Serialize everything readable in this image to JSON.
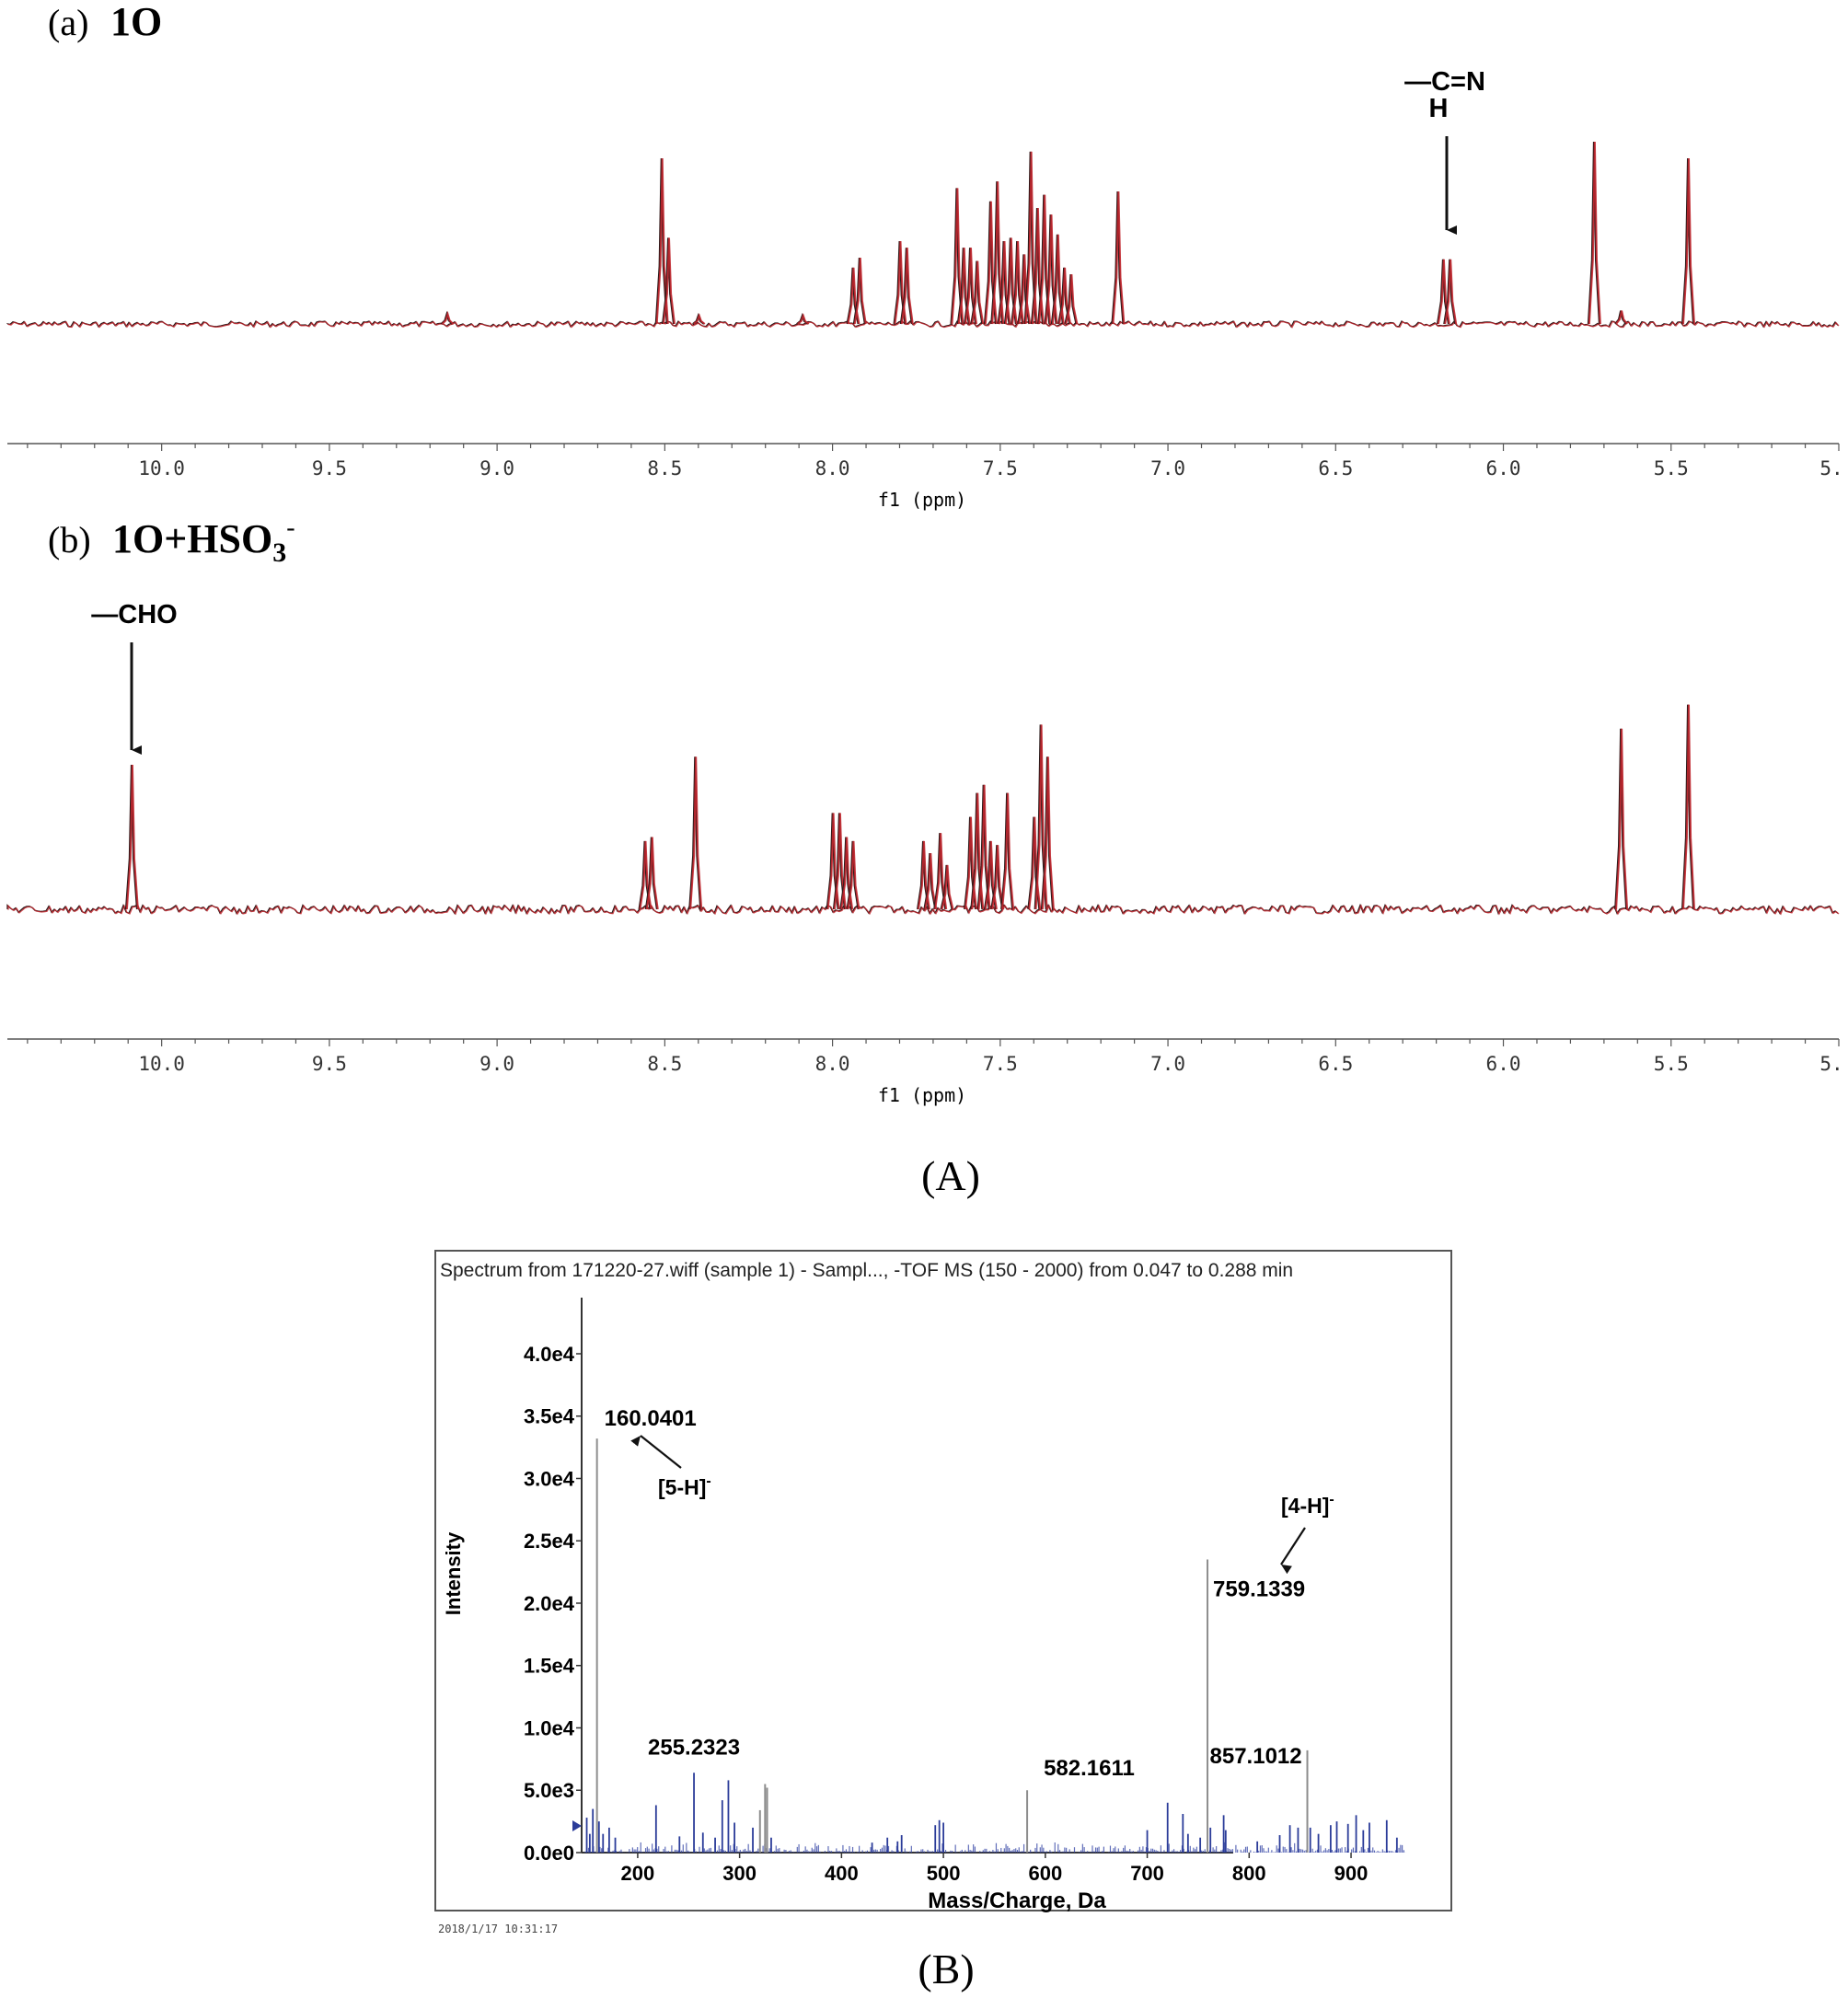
{
  "figure": {
    "panel_A_caption": "(A)",
    "panel_B_caption": "(B)"
  },
  "chart_data": [
    {
      "id": "nmr_a",
      "type": "line",
      "panel_label": "(a)",
      "panel_title": "1O",
      "xlabel": "f1 (ppm)",
      "xlim": [
        10.46,
        5.0
      ],
      "x_reversed": true,
      "x_ticks": [
        10.0,
        9.5,
        9.0,
        8.5,
        8.0,
        7.5,
        7.0,
        6.5,
        6.0,
        5.5,
        5.0
      ],
      "x_tick_labels": [
        "10.0",
        "9.5",
        "9.0",
        "8.5",
        "8.0",
        "7.5",
        "7.0",
        "6.5",
        "6.0",
        "5.5",
        "5."
      ],
      "series": [
        {
          "color": "#c0262d",
          "peaks": [
            {
              "x": 9.15,
              "y": 0.06
            },
            {
              "x": 8.51,
              "y": 1.0
            },
            {
              "x": 8.49,
              "y": 0.52
            },
            {
              "x": 8.4,
              "y": 0.05
            },
            {
              "x": 8.09,
              "y": 0.05
            },
            {
              "x": 7.94,
              "y": 0.34
            },
            {
              "x": 7.92,
              "y": 0.4
            },
            {
              "x": 7.8,
              "y": 0.5
            },
            {
              "x": 7.78,
              "y": 0.46
            },
            {
              "x": 7.63,
              "y": 0.82
            },
            {
              "x": 7.61,
              "y": 0.46
            },
            {
              "x": 7.59,
              "y": 0.46
            },
            {
              "x": 7.57,
              "y": 0.38
            },
            {
              "x": 7.53,
              "y": 0.74
            },
            {
              "x": 7.51,
              "y": 0.86
            },
            {
              "x": 7.49,
              "y": 0.5
            },
            {
              "x": 7.47,
              "y": 0.52
            },
            {
              "x": 7.45,
              "y": 0.5
            },
            {
              "x": 7.43,
              "y": 0.42
            },
            {
              "x": 7.41,
              "y": 1.04
            },
            {
              "x": 7.39,
              "y": 0.7
            },
            {
              "x": 7.37,
              "y": 0.78
            },
            {
              "x": 7.35,
              "y": 0.66
            },
            {
              "x": 7.33,
              "y": 0.54
            },
            {
              "x": 7.31,
              "y": 0.34
            },
            {
              "x": 7.29,
              "y": 0.3
            },
            {
              "x": 7.15,
              "y": 0.8
            },
            {
              "x": 6.18,
              "y": 0.39
            },
            {
              "x": 6.16,
              "y": 0.39
            },
            {
              "x": 5.73,
              "y": 1.1
            },
            {
              "x": 5.65,
              "y": 0.08
            },
            {
              "x": 5.45,
              "y": 1.0
            }
          ]
        }
      ],
      "annotation": {
        "text_top": "—C=N",
        "text_bottom": "H",
        "x": 6.17
      }
    },
    {
      "id": "nmr_b",
      "type": "line",
      "panel_label": "(b)",
      "panel_title": "1O+HSO",
      "panel_title_sub": "3",
      "panel_title_sup": "-",
      "xlabel": "f1 (ppm)",
      "xlim": [
        10.46,
        5.0
      ],
      "x_reversed": true,
      "x_ticks": [
        10.0,
        9.5,
        9.0,
        8.5,
        8.0,
        7.5,
        7.0,
        6.5,
        6.0,
        5.5,
        5.0
      ],
      "x_tick_labels": [
        "10.0",
        "9.5",
        "9.0",
        "8.5",
        "8.0",
        "7.5",
        "7.0",
        "6.5",
        "6.0",
        "5.5",
        "5."
      ],
      "series": [
        {
          "color": "#c0262d",
          "peaks": [
            {
              "x": 10.09,
              "y": 0.72
            },
            {
              "x": 8.56,
              "y": 0.34
            },
            {
              "x": 8.54,
              "y": 0.36
            },
            {
              "x": 8.41,
              "y": 0.76
            },
            {
              "x": 8.0,
              "y": 0.48
            },
            {
              "x": 7.98,
              "y": 0.48
            },
            {
              "x": 7.96,
              "y": 0.36
            },
            {
              "x": 7.94,
              "y": 0.34
            },
            {
              "x": 7.73,
              "y": 0.34
            },
            {
              "x": 7.71,
              "y": 0.28
            },
            {
              "x": 7.68,
              "y": 0.38
            },
            {
              "x": 7.66,
              "y": 0.22
            },
            {
              "x": 7.59,
              "y": 0.46
            },
            {
              "x": 7.57,
              "y": 0.58
            },
            {
              "x": 7.55,
              "y": 0.62
            },
            {
              "x": 7.53,
              "y": 0.34
            },
            {
              "x": 7.51,
              "y": 0.32
            },
            {
              "x": 7.48,
              "y": 0.58
            },
            {
              "x": 7.4,
              "y": 0.46
            },
            {
              "x": 7.38,
              "y": 0.92
            },
            {
              "x": 7.36,
              "y": 0.76
            },
            {
              "x": 5.65,
              "y": 0.9
            },
            {
              "x": 5.45,
              "y": 1.02
            }
          ]
        }
      ],
      "annotation": {
        "text": "—CHO",
        "x": 10.09
      }
    },
    {
      "id": "ms",
      "type": "bar",
      "title": "Spectrum from 171220-27.wiff (sample 1) - Sampl..., -TOF MS (150 - 2000) from 0.047 to 0.288 min",
      "xlabel": "Mass/Charge, Da",
      "ylabel": "Intensity",
      "xlim": [
        145,
        965
      ],
      "ylim": [
        0,
        44500
      ],
      "x_tick_labels": [
        "200",
        "300",
        "400",
        "500",
        "600",
        "700",
        "800",
        "900"
      ],
      "x_ticks": [
        200,
        300,
        400,
        500,
        600,
        700,
        800,
        900
      ],
      "y_tick_labels": [
        "0.0e0",
        "5.0e3",
        "1.0e4",
        "1.5e4",
        "2.0e4",
        "2.5e4",
        "3.0e4",
        "3.5e4",
        "4.0e4"
      ],
      "y_ticks": [
        0,
        5000,
        10000,
        15000,
        20000,
        25000,
        30000,
        35000,
        40000
      ],
      "timestamp": "2018/1/17 10:31:17",
      "peak_labels": [
        {
          "text": "160.0401",
          "mz": 160.04,
          "intensity": 33200
        },
        {
          "text": "255.2323",
          "mz": 255.23,
          "intensity": 6400
        },
        {
          "text": "582.1611",
          "mz": 582.16,
          "intensity": 5000
        },
        {
          "text": "759.1339",
          "mz": 759.13,
          "intensity": 23500
        },
        {
          "text": "857.1012",
          "mz": 857.1,
          "intensity": 8200
        }
      ],
      "ion_labels": [
        {
          "text": "[5-H]",
          "sup": "-",
          "for_mz": 160.04
        },
        {
          "text": "[4-H]",
          "sup": "-",
          "for_mz": 759.13
        }
      ],
      "major_peaks": [
        {
          "mz": 150,
          "intensity": 2800
        },
        {
          "mz": 153,
          "intensity": 1500
        },
        {
          "mz": 156,
          "intensity": 3500
        },
        {
          "mz": 160.04,
          "intensity": 33200
        },
        {
          "mz": 162,
          "intensity": 2500
        },
        {
          "mz": 166,
          "intensity": 1500
        },
        {
          "mz": 172,
          "intensity": 2000
        },
        {
          "mz": 178,
          "intensity": 1200
        },
        {
          "mz": 218,
          "intensity": 3800
        },
        {
          "mz": 241,
          "intensity": 1300
        },
        {
          "mz": 255.23,
          "intensity": 6400
        },
        {
          "mz": 264,
          "intensity": 1600
        },
        {
          "mz": 276,
          "intensity": 1200
        },
        {
          "mz": 283,
          "intensity": 4200
        },
        {
          "mz": 289,
          "intensity": 5800
        },
        {
          "mz": 295,
          "intensity": 2400
        },
        {
          "mz": 313,
          "intensity": 2000
        },
        {
          "mz": 320,
          "intensity": 3400
        },
        {
          "mz": 325,
          "intensity": 5500
        },
        {
          "mz": 327,
          "intensity": 5200
        },
        {
          "mz": 331,
          "intensity": 1200
        },
        {
          "mz": 430,
          "intensity": 800
        },
        {
          "mz": 445,
          "intensity": 1200
        },
        {
          "mz": 455,
          "intensity": 900
        },
        {
          "mz": 459,
          "intensity": 1400
        },
        {
          "mz": 492,
          "intensity": 2200
        },
        {
          "mz": 496,
          "intensity": 2600
        },
        {
          "mz": 500,
          "intensity": 2400
        },
        {
          "mz": 582.16,
          "intensity": 5000
        },
        {
          "mz": 700,
          "intensity": 1800
        },
        {
          "mz": 720,
          "intensity": 4000
        },
        {
          "mz": 735,
          "intensity": 3100
        },
        {
          "mz": 740,
          "intensity": 1500
        },
        {
          "mz": 752,
          "intensity": 1200
        },
        {
          "mz": 759.13,
          "intensity": 23500
        },
        {
          "mz": 762,
          "intensity": 2000
        },
        {
          "mz": 775,
          "intensity": 3000
        },
        {
          "mz": 777,
          "intensity": 1800
        },
        {
          "mz": 808,
          "intensity": 900
        },
        {
          "mz": 830,
          "intensity": 1400
        },
        {
          "mz": 840,
          "intensity": 2200
        },
        {
          "mz": 848,
          "intensity": 2000
        },
        {
          "mz": 857.1,
          "intensity": 8200
        },
        {
          "mz": 860,
          "intensity": 2000
        },
        {
          "mz": 868,
          "intensity": 1500
        },
        {
          "mz": 880,
          "intensity": 2200
        },
        {
          "mz": 886,
          "intensity": 2500
        },
        {
          "mz": 897,
          "intensity": 2300
        },
        {
          "mz": 905,
          "intensity": 3000
        },
        {
          "mz": 912,
          "intensity": 1800
        },
        {
          "mz": 918,
          "intensity": 2400
        },
        {
          "mz": 935,
          "intensity": 2600
        },
        {
          "mz": 945,
          "intensity": 1200
        }
      ]
    }
  ]
}
